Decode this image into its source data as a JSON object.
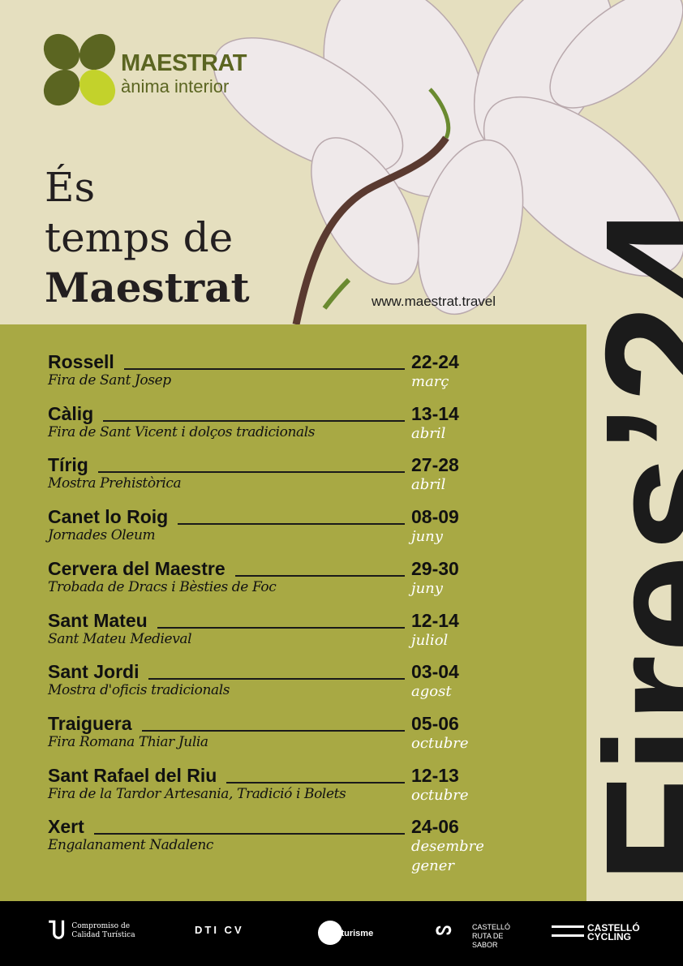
{
  "brand": {
    "name": "MAESTRAT",
    "tagline": "ànima interior",
    "color_dark": "#5b6521",
    "color_light": "#c3d22b"
  },
  "title": {
    "line1": "És",
    "line2": "temps de",
    "line3": "Maestrat"
  },
  "url": "www.maestrat.travel",
  "vertical_title": "Fires’24",
  "colors": {
    "background": "#e5dfbf",
    "panel": "#a8a944",
    "text": "#1b1b1b",
    "month": "#ffffff"
  },
  "events": [
    {
      "town": "Rossell",
      "event": "Fira de Sant Josep",
      "dates": "22-24",
      "month": "març"
    },
    {
      "town": "Càlig",
      "event": "Fira de Sant Vicent i dolços tradicionals",
      "dates": "13-14",
      "month": "abril"
    },
    {
      "town": "Tírig",
      "event": "Mostra Prehistòrica",
      "dates": "27-28",
      "month": "abril"
    },
    {
      "town": "Canet lo Roig",
      "event": "Jornades Oleum",
      "dates": "08-09",
      "month": "juny"
    },
    {
      "town": "Cervera del Maestre",
      "event": "Trobada de Dracs i Bèsties de Foc",
      "dates": "29-30",
      "month": "juny"
    },
    {
      "town": "Sant Mateu",
      "event": "Sant Mateu Medieval",
      "dates": "12-14",
      "month": "juliol"
    },
    {
      "town": "Sant Jordi",
      "event": "Mostra d'oficis tradicionals",
      "dates": "03-04",
      "month": "agost"
    },
    {
      "town": "Traiguera",
      "event": "Fira Romana Thiar Julia",
      "dates": "05-06",
      "month": "octubre"
    },
    {
      "town": "Sant Rafael del Riu",
      "event": "Fira de la Tardor Artesania, Tradició i Bolets",
      "dates": "12-13",
      "month": "octubre"
    },
    {
      "town": "Xert",
      "event": "Engalanament Nadalenc",
      "dates": "24-06",
      "month": "desembre gener"
    }
  ],
  "footer": {
    "logo1": "Compromiso de Calidad Turística",
    "logo2": "DTI CV",
    "logo3": "Creaturisme",
    "logo4": "CASTELLÓ RUTA DE SABOR",
    "logo5": "CASTELLÓ CYCLING"
  }
}
